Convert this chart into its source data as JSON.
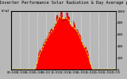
{
  "title": "Solar PV/Inverter Performance Solar Radiation & Day Average per Minute",
  "title_fontsize": 3.8,
  "bg_color": "#b8b8b8",
  "plot_bg_color": "#b8b8b8",
  "fill_color": "#ff0000",
  "line_color": "#dd0000",
  "grid_color": "#ffffff",
  "grid_style": ":",
  "ylim": [
    0,
    1000
  ],
  "xlim": [
    0,
    1439
  ],
  "right_yticks": [
    1000,
    800,
    600,
    400,
    200,
    0
  ],
  "right_yticklabels": [
    "1000",
    "800",
    "600",
    "400",
    "200",
    "0"
  ],
  "ytick_fontsize": 3.0,
  "xtick_fontsize": 2.8,
  "num_points": 1440,
  "day_avg_color": "#ffff00",
  "subtitle": "W/m2"
}
